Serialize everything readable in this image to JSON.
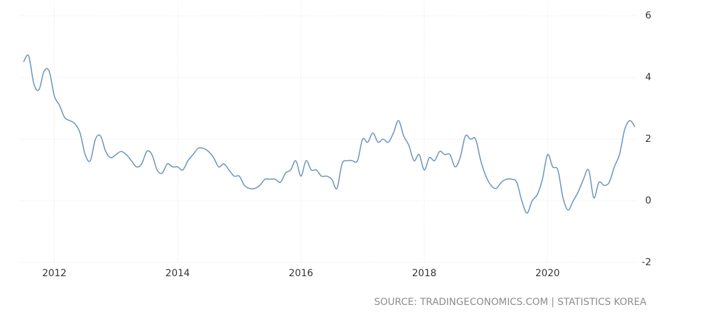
{
  "chart_data": {
    "type": "line",
    "source": "SOURCE: TRADINGECONOMICS.COM | STATISTICS KOREA",
    "x": [
      2011.5,
      2011.583,
      2011.667,
      2011.75,
      2011.833,
      2011.917,
      2012,
      2012.083,
      2012.167,
      2012.25,
      2012.333,
      2012.417,
      2012.5,
      2012.583,
      2012.667,
      2012.75,
      2012.833,
      2012.917,
      2013,
      2013.083,
      2013.167,
      2013.25,
      2013.333,
      2013.417,
      2013.5,
      2013.583,
      2013.667,
      2013.75,
      2013.833,
      2013.917,
      2014,
      2014.083,
      2014.167,
      2014.25,
      2014.333,
      2014.417,
      2014.5,
      2014.583,
      2014.667,
      2014.75,
      2014.833,
      2014.917,
      2015,
      2015.083,
      2015.167,
      2015.25,
      2015.333,
      2015.417,
      2015.5,
      2015.583,
      2015.667,
      2015.75,
      2015.833,
      2015.917,
      2016,
      2016.083,
      2016.167,
      2016.25,
      2016.333,
      2016.417,
      2016.5,
      2016.583,
      2016.667,
      2016.75,
      2016.833,
      2016.917,
      2017,
      2017.083,
      2017.167,
      2017.25,
      2017.333,
      2017.417,
      2017.5,
      2017.583,
      2017.667,
      2017.75,
      2017.833,
      2017.917,
      2018,
      2018.083,
      2018.167,
      2018.25,
      2018.333,
      2018.417,
      2018.5,
      2018.583,
      2018.667,
      2018.75,
      2018.833,
      2018.917,
      2019,
      2019.083,
      2019.167,
      2019.25,
      2019.333,
      2019.417,
      2019.5,
      2019.583,
      2019.667,
      2019.75,
      2019.833,
      2019.917,
      2020,
      2020.083,
      2020.167,
      2020.25,
      2020.333,
      2020.417,
      2020.5,
      2020.583,
      2020.667,
      2020.75,
      2020.833,
      2020.917,
      2021,
      2021.083,
      2021.167,
      2021.25,
      2021.333,
      2021.417
    ],
    "series": [
      {
        "color": "#6f97c0",
        "values": [
          4.5,
          4.7,
          3.8,
          3.6,
          4.2,
          4.2,
          3.4,
          3.1,
          2.7,
          2.6,
          2.5,
          2.2,
          1.5,
          1.3,
          2.0,
          2.1,
          1.6,
          1.4,
          1.5,
          1.6,
          1.5,
          1.3,
          1.1,
          1.2,
          1.6,
          1.5,
          1.0,
          0.9,
          1.2,
          1.1,
          1.1,
          1.0,
          1.3,
          1.5,
          1.7,
          1.7,
          1.6,
          1.4,
          1.1,
          1.2,
          1.0,
          0.8,
          0.8,
          0.5,
          0.4,
          0.4,
          0.5,
          0.7,
          0.7,
          0.7,
          0.6,
          0.9,
          1.0,
          1.3,
          0.8,
          1.3,
          1.0,
          1.0,
          0.8,
          0.8,
          0.7,
          0.4,
          1.2,
          1.3,
          1.3,
          1.3,
          2.0,
          1.9,
          2.2,
          1.9,
          2.0,
          1.9,
          2.2,
          2.6,
          2.1,
          1.8,
          1.3,
          1.5,
          1.0,
          1.4,
          1.3,
          1.6,
          1.5,
          1.5,
          1.1,
          1.4,
          2.1,
          2.0,
          2.0,
          1.3,
          0.8,
          0.5,
          0.4,
          0.6,
          0.7,
          0.7,
          0.6,
          0.0,
          -0.4,
          0.0,
          0.2,
          0.7,
          1.5,
          1.1,
          1.0,
          0.1,
          -0.3,
          0.0,
          0.3,
          0.7,
          1.0,
          0.1,
          0.6,
          0.5,
          0.6,
          1.1,
          1.5,
          2.3,
          2.6,
          2.4
        ]
      }
    ],
    "xlim": [
      2011.43,
      2021.46
    ],
    "xticks": [
      2012,
      2014,
      2016,
      2018,
      2020
    ],
    "ylim": [
      -2,
      6
    ],
    "yticks": [
      -2,
      0,
      2,
      4,
      6
    ],
    "grid": true
  }
}
